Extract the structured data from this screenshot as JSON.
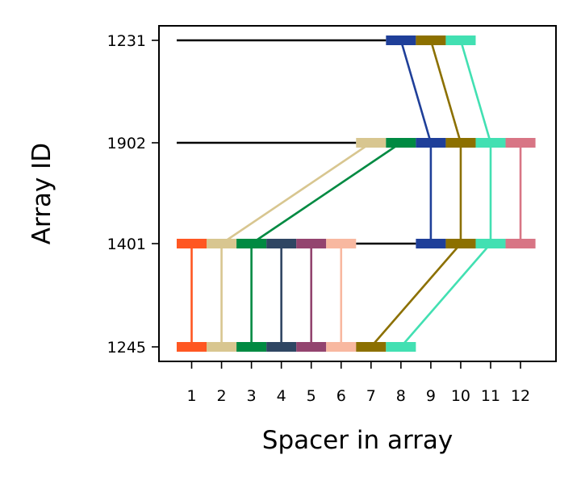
{
  "chart_data": {
    "type": "line",
    "xlabel": "Spacer in array",
    "ylabel": "Array ID",
    "x_ticks": [
      1,
      2,
      3,
      4,
      5,
      6,
      7,
      8,
      9,
      10,
      11,
      12
    ],
    "xlim": [
      0.5,
      12.5
    ],
    "arrays": [
      "1231",
      "1902",
      "1401",
      "1245"
    ],
    "backbones": [
      {
        "array": "1231",
        "from": 0.5,
        "to": 7.5
      },
      {
        "array": "1902",
        "from": 0.5,
        "to": 6.5
      },
      {
        "array": "1401",
        "from": 6.5,
        "to": 8.5
      }
    ],
    "spacers": [
      {
        "array": "1231",
        "pos": 8,
        "color": "#1f3f99"
      },
      {
        "array": "1231",
        "pos": 9,
        "color": "#8c7000"
      },
      {
        "array": "1231",
        "pos": 10,
        "color": "#42e0b2"
      },
      {
        "array": "1902",
        "pos": 7,
        "color": "#d8c690"
      },
      {
        "array": "1902",
        "pos": 8,
        "color": "#008a42"
      },
      {
        "array": "1902",
        "pos": 9,
        "color": "#1f3f99"
      },
      {
        "array": "1902",
        "pos": 10,
        "color": "#8c7000"
      },
      {
        "array": "1902",
        "pos": 11,
        "color": "#42e0b2"
      },
      {
        "array": "1902",
        "pos": 12,
        "color": "#d87585"
      },
      {
        "array": "1401",
        "pos": 1,
        "color": "#ff5722"
      },
      {
        "array": "1401",
        "pos": 2,
        "color": "#d8c690"
      },
      {
        "array": "1401",
        "pos": 3,
        "color": "#008a42"
      },
      {
        "array": "1401",
        "pos": 4,
        "color": "#2f4663"
      },
      {
        "array": "1401",
        "pos": 5,
        "color": "#93446f"
      },
      {
        "array": "1401",
        "pos": 6,
        "color": "#f8b8a0"
      },
      {
        "array": "1401",
        "pos": 9,
        "color": "#1f3f99"
      },
      {
        "array": "1401",
        "pos": 10,
        "color": "#8c7000"
      },
      {
        "array": "1401",
        "pos": 11,
        "color": "#42e0b2"
      },
      {
        "array": "1401",
        "pos": 12,
        "color": "#d87585"
      },
      {
        "array": "1245",
        "pos": 1,
        "color": "#ff5722"
      },
      {
        "array": "1245",
        "pos": 2,
        "color": "#d8c690"
      },
      {
        "array": "1245",
        "pos": 3,
        "color": "#008a42"
      },
      {
        "array": "1245",
        "pos": 4,
        "color": "#2f4663"
      },
      {
        "array": "1245",
        "pos": 5,
        "color": "#93446f"
      },
      {
        "array": "1245",
        "pos": 6,
        "color": "#f8b8a0"
      },
      {
        "array": "1245",
        "pos": 7,
        "color": "#8c7000"
      },
      {
        "array": "1245",
        "pos": 8,
        "color": "#42e0b2"
      }
    ],
    "links": [
      {
        "from_array": "1231",
        "from_pos": 8,
        "to_array": "1902",
        "to_pos": 9,
        "color": "#1f3f99"
      },
      {
        "from_array": "1231",
        "from_pos": 9,
        "to_array": "1902",
        "to_pos": 10,
        "color": "#8c7000"
      },
      {
        "from_array": "1231",
        "from_pos": 10,
        "to_array": "1902",
        "to_pos": 11,
        "color": "#42e0b2"
      },
      {
        "from_array": "1902",
        "from_pos": 7,
        "to_array": "1401",
        "to_pos": 2,
        "color": "#d8c690"
      },
      {
        "from_array": "1902",
        "from_pos": 8,
        "to_array": "1401",
        "to_pos": 3,
        "color": "#008a42"
      },
      {
        "from_array": "1902",
        "from_pos": 9,
        "to_array": "1401",
        "to_pos": 9,
        "color": "#1f3f99"
      },
      {
        "from_array": "1902",
        "from_pos": 10,
        "to_array": "1401",
        "to_pos": 10,
        "color": "#8c7000"
      },
      {
        "from_array": "1902",
        "from_pos": 11,
        "to_array": "1401",
        "to_pos": 11,
        "color": "#42e0b2"
      },
      {
        "from_array": "1902",
        "from_pos": 12,
        "to_array": "1401",
        "to_pos": 12,
        "color": "#d87585"
      },
      {
        "from_array": "1401",
        "from_pos": 1,
        "to_array": "1245",
        "to_pos": 1,
        "color": "#ff5722"
      },
      {
        "from_array": "1401",
        "from_pos": 2,
        "to_array": "1245",
        "to_pos": 2,
        "color": "#d8c690"
      },
      {
        "from_array": "1401",
        "from_pos": 3,
        "to_array": "1245",
        "to_pos": 3,
        "color": "#008a42"
      },
      {
        "from_array": "1401",
        "from_pos": 4,
        "to_array": "1245",
        "to_pos": 4,
        "color": "#2f4663"
      },
      {
        "from_array": "1401",
        "from_pos": 5,
        "to_array": "1245",
        "to_pos": 5,
        "color": "#93446f"
      },
      {
        "from_array": "1401",
        "from_pos": 6,
        "to_array": "1245",
        "to_pos": 6,
        "color": "#f8b8a0"
      },
      {
        "from_array": "1401",
        "from_pos": 10,
        "to_array": "1245",
        "to_pos": 7,
        "color": "#8c7000"
      },
      {
        "from_array": "1401",
        "from_pos": 11,
        "to_array": "1245",
        "to_pos": 8,
        "color": "#42e0b2"
      }
    ],
    "grid": false,
    "legend": "none"
  }
}
